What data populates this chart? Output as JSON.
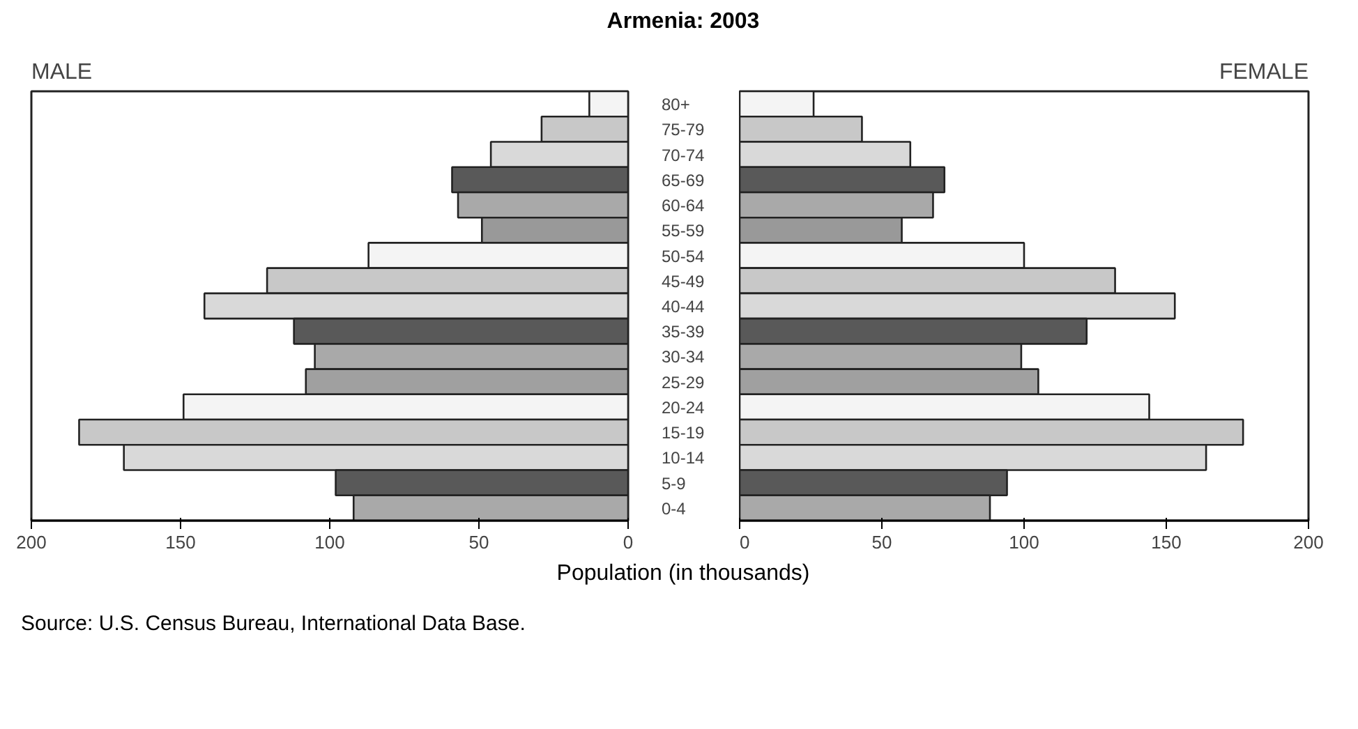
{
  "chart_data": [
    {
      "type": "bar",
      "orientation": "horizontal",
      "title": "Armenia: 2003",
      "categories": [
        "80+",
        "75-79",
        "70-74",
        "65-69",
        "60-64",
        "55-59",
        "50-54",
        "45-49",
        "40-44",
        "35-39",
        "30-34",
        "25-29",
        "20-24",
        "15-19",
        "10-14",
        "5-9",
        "0-4"
      ],
      "series": [
        {
          "name": "MALE",
          "values": [
            13,
            29,
            46,
            59,
            57,
            49,
            87,
            121,
            142,
            112,
            105,
            108,
            149,
            184,
            169,
            98,
            92
          ],
          "colors": [
            "#f4f4f4",
            "#c8c8c8",
            "#d9d9d9",
            "#595959",
            "#a9a9a9",
            "#999999",
            "#f4f4f4",
            "#c8c8c8",
            "#d9d9d9",
            "#595959",
            "#a9a9a9",
            "#a0a0a0",
            "#f4f4f4",
            "#c8c8c8",
            "#d9d9d9",
            "#595959",
            "#a9a9a9"
          ]
        }
      ],
      "xlim": [
        200,
        0
      ],
      "xticks": [
        200,
        150,
        100,
        50,
        0
      ],
      "grid": false
    },
    {
      "type": "bar",
      "orientation": "horizontal",
      "xlabel": "Population (in thousands)",
      "annotations": [
        "Source: U.S. Census Bureau, International Data Base."
      ],
      "series": [
        {
          "name": "FEMALE",
          "values": [
            26,
            43,
            60,
            72,
            68,
            57,
            100,
            132,
            153,
            122,
            99,
            105,
            144,
            177,
            164,
            94,
            88
          ],
          "colors": [
            "#f4f4f4",
            "#c8c8c8",
            "#d9d9d9",
            "#595959",
            "#a9a9a9",
            "#999999",
            "#f4f4f4",
            "#c8c8c8",
            "#d9d9d9",
            "#595959",
            "#a9a9a9",
            "#a0a0a0",
            "#f4f4f4",
            "#c8c8c8",
            "#d9d9d9",
            "#595959",
            "#a9a9a9"
          ]
        }
      ],
      "xlim": [
        0,
        200
      ],
      "xticks": [
        0,
        50,
        100,
        150,
        200
      ],
      "grid": false,
      "tick_labels": "x"
    }
  ]
}
